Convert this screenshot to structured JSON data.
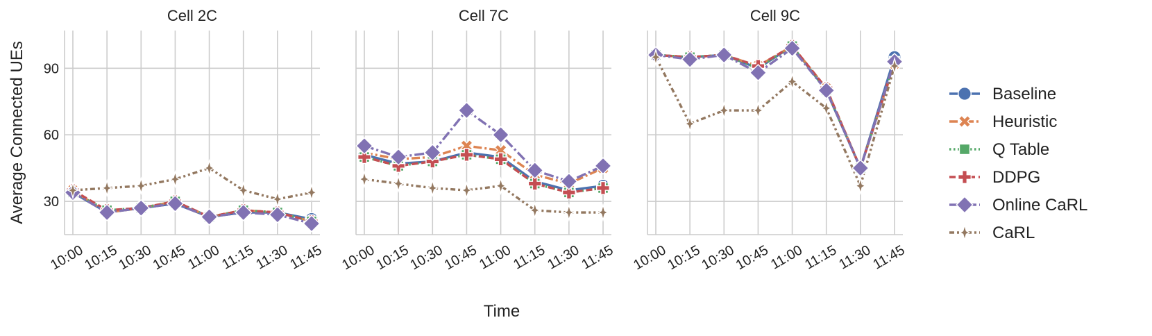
{
  "chart_data": {
    "type": "line",
    "ylabel": "Average Connected UEs",
    "xlabel": "Time",
    "categories": [
      "10:00",
      "10:15",
      "10:30",
      "10:45",
      "11:00",
      "11:15",
      "11:30",
      "11:45"
    ],
    "yticks": [
      30,
      60,
      90
    ],
    "ylim": [
      15,
      107
    ],
    "grid": true,
    "legend_position": "right",
    "panels": [
      {
        "title": "Cell 2C",
        "series": [
          {
            "name": "Baseline",
            "values": [
              34,
              25,
              27,
              29,
              23,
              25,
              25,
              22
            ]
          },
          {
            "name": "Heuristic",
            "values": [
              35,
              25,
              27,
              30,
              23,
              26,
              25,
              21
            ]
          },
          {
            "name": "Q Table",
            "values": [
              34,
              26,
              27,
              30,
              23,
              26,
              25,
              21
            ]
          },
          {
            "name": "DDPG",
            "values": [
              35,
              26,
              27,
              30,
              23,
              26,
              25,
              21
            ]
          },
          {
            "name": "Online CaRL",
            "values": [
              34,
              25,
              27,
              29,
              23,
              25,
              24,
              20
            ]
          },
          {
            "name": "CaRL",
            "values": [
              35,
              36,
              37,
              40,
              45,
              35,
              31,
              34
            ]
          }
        ]
      },
      {
        "title": "Cell 7C",
        "series": [
          {
            "name": "Baseline",
            "values": [
              51,
              47,
              48,
              52,
              50,
              39,
              35,
              37
            ]
          },
          {
            "name": "Heuristic",
            "values": [
              52,
              49,
              50,
              55,
              53,
              42,
              38,
              45
            ]
          },
          {
            "name": "Q Table",
            "values": [
              50,
              46,
              48,
              51,
              49,
              38,
              34,
              36
            ]
          },
          {
            "name": "DDPG",
            "values": [
              50,
              46,
              48,
              51,
              49,
              38,
              34,
              36
            ]
          },
          {
            "name": "Online CaRL",
            "values": [
              55,
              50,
              52,
              71,
              60,
              44,
              39,
              46
            ]
          },
          {
            "name": "CaRL",
            "values": [
              40,
              38,
              36,
              35,
              37,
              26,
              25,
              25
            ]
          }
        ]
      },
      {
        "title": "Cell 9C",
        "series": [
          {
            "name": "Baseline",
            "values": [
              96,
              95,
              96,
              90,
              100,
              80,
              45,
              95
            ]
          },
          {
            "name": "Heuristic",
            "values": [
              96,
              95,
              96,
              91,
              100,
              81,
              45,
              92
            ]
          },
          {
            "name": "Q Table",
            "values": [
              96,
              95,
              96,
              90,
              100,
              80,
              45,
              93
            ]
          },
          {
            "name": "DDPG",
            "values": [
              96,
              95,
              96,
              91,
              100,
              81,
              45,
              93
            ]
          },
          {
            "name": "Online CaRL",
            "values": [
              96,
              94,
              96,
              88,
              99,
              80,
              45,
              93
            ]
          },
          {
            "name": "CaRL",
            "values": [
              95,
              65,
              71,
              71,
              84,
              72,
              37,
              91
            ]
          }
        ]
      }
    ],
    "legend": [
      {
        "name": "Baseline",
        "color": "#4c72b0",
        "marker": "circle",
        "dash": "solid"
      },
      {
        "name": "Heuristic",
        "color": "#dd8452",
        "marker": "x",
        "dash": "dashdot"
      },
      {
        "name": "Q Table",
        "color": "#55a868",
        "marker": "square",
        "dash": "dotted"
      },
      {
        "name": "DDPG",
        "color": "#c44e52",
        "marker": "plus",
        "dash": "dashed"
      },
      {
        "name": "Online CaRL",
        "color": "#8172b3",
        "marker": "diamond",
        "dash": "dashdot2"
      },
      {
        "name": "CaRL",
        "color": "#937860",
        "marker": "thin-diamond",
        "dash": "dashdotdot"
      }
    ]
  }
}
